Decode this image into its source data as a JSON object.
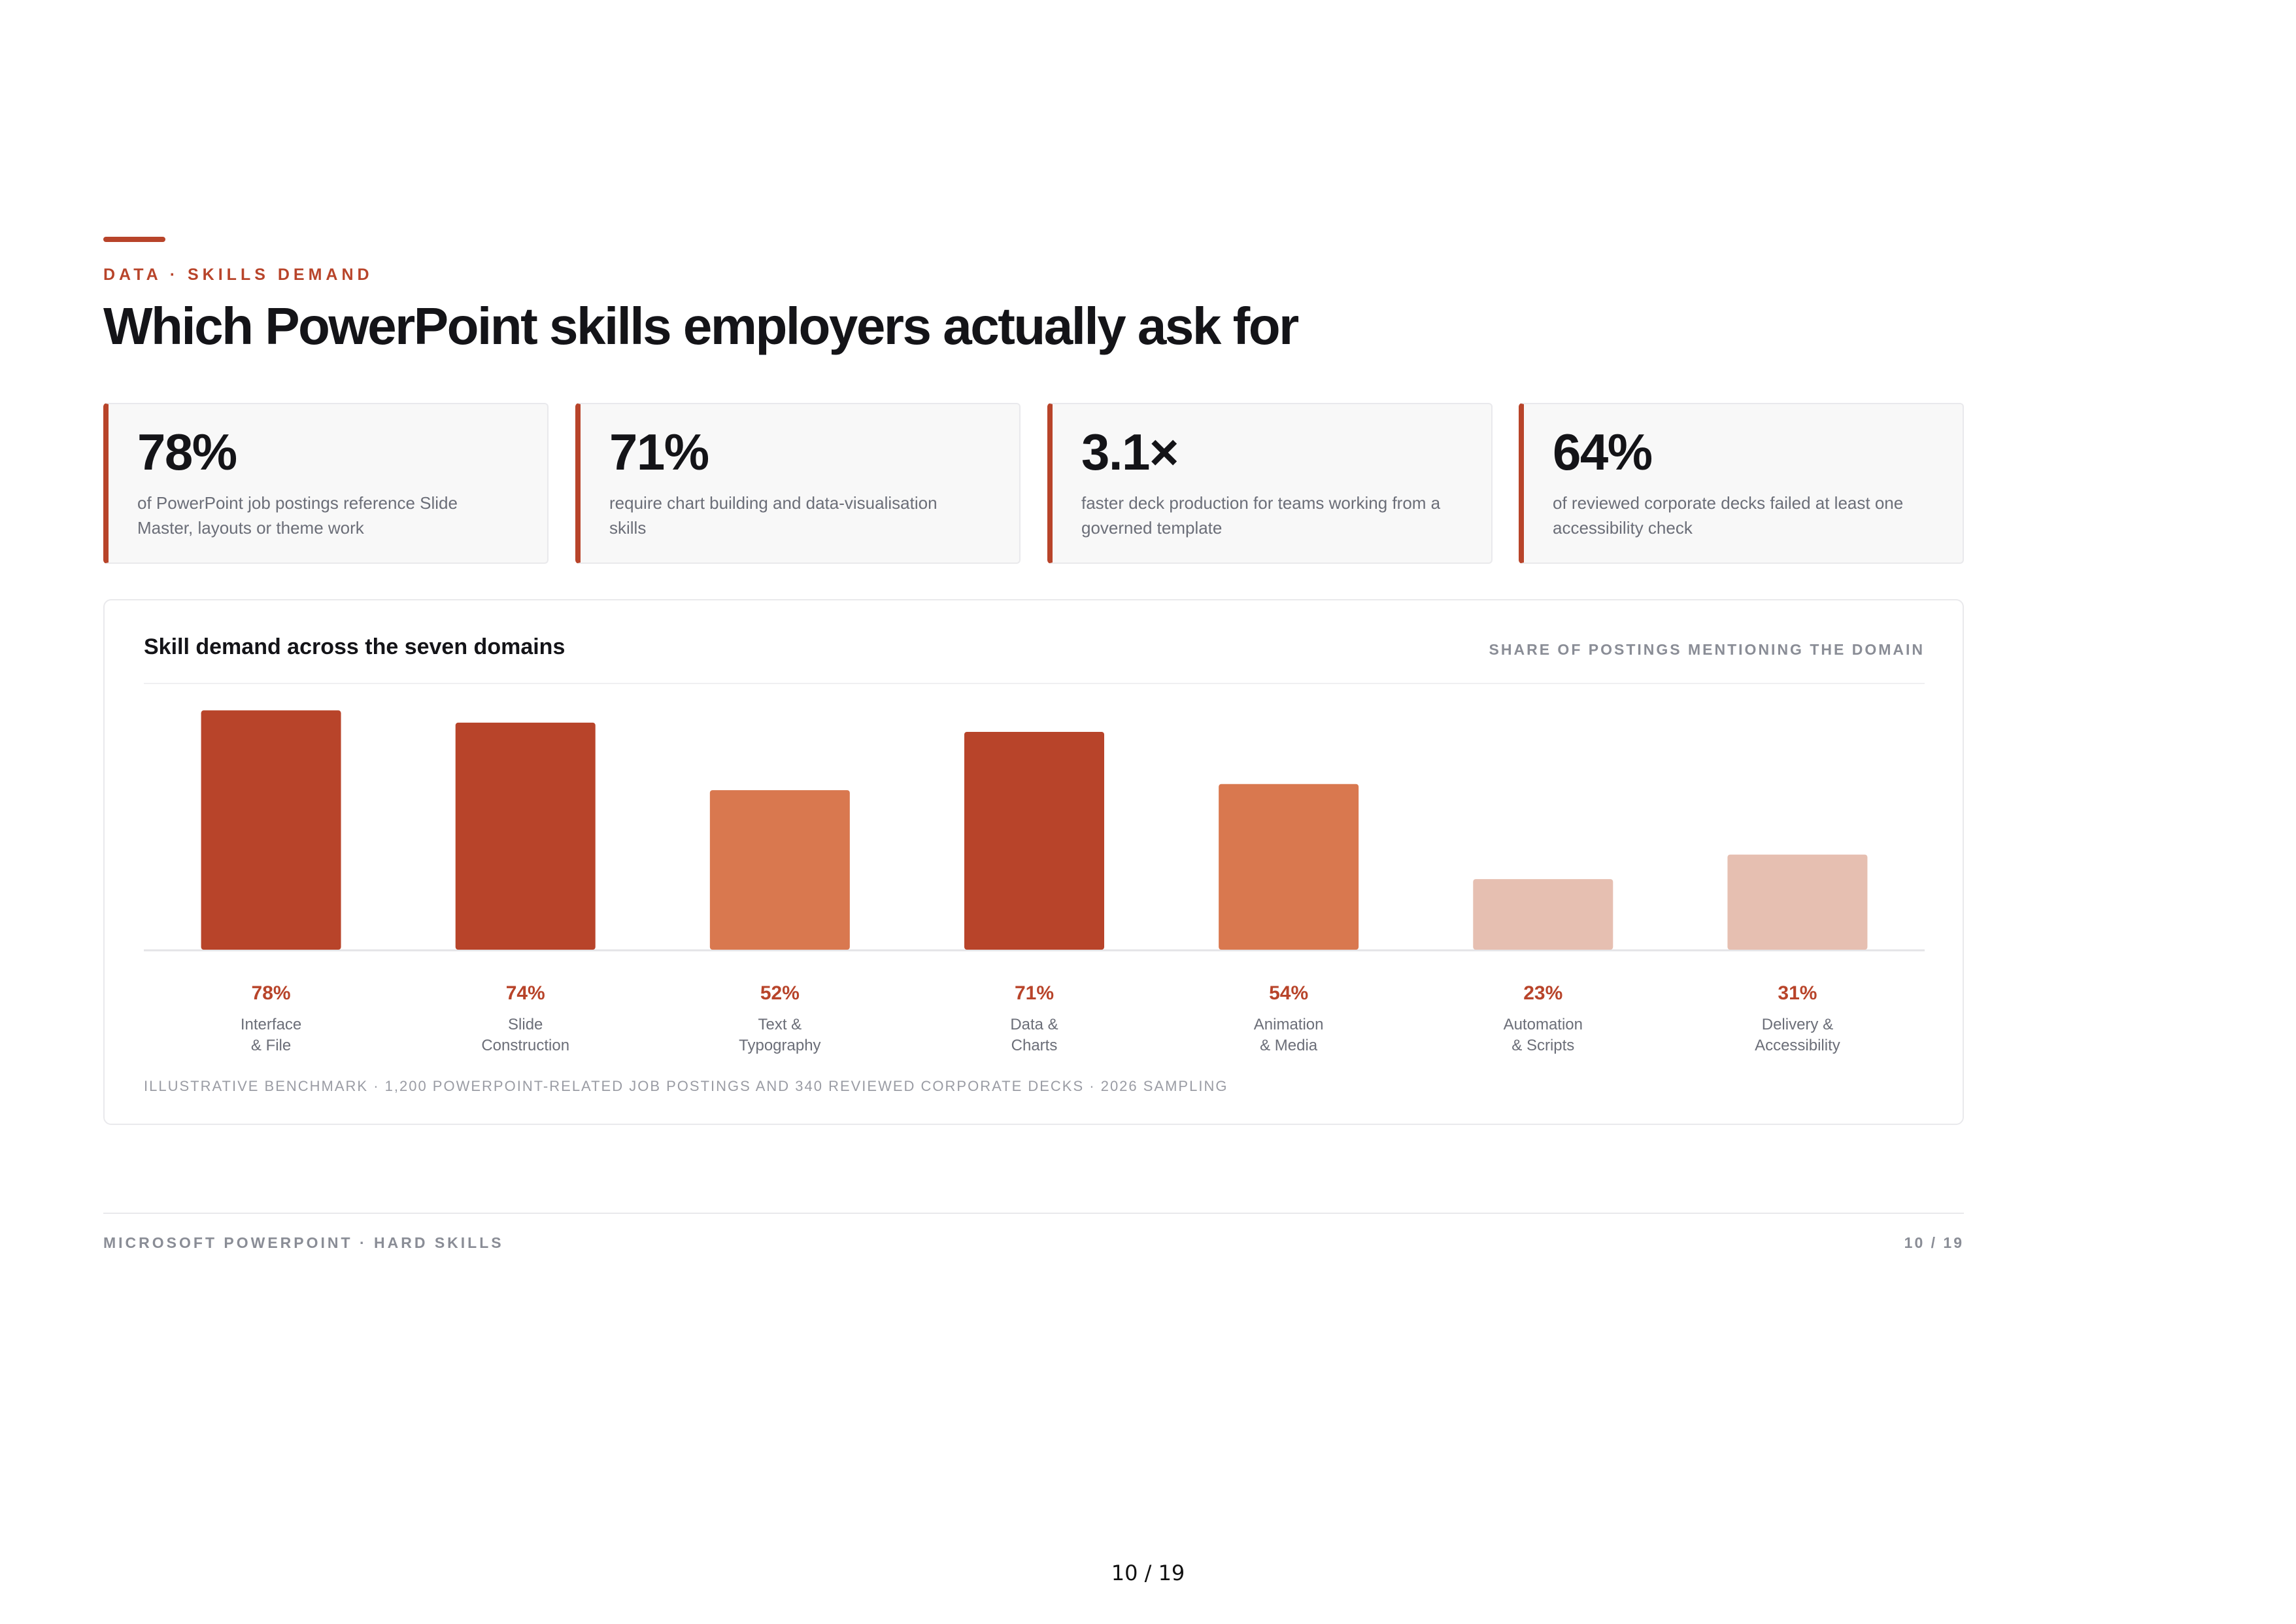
{
  "eyebrow": "DATA · SKILLS DEMAND",
  "title": "Which PowerPoint skills employers actually ask for",
  "stats": [
    {
      "value": "78%",
      "description": "of PowerPoint job postings reference Slide Master, layouts or theme work"
    },
    {
      "value": "71%",
      "description": "require chart building and data-visualisation skills"
    },
    {
      "value": "3.1×",
      "description": "faster deck production for teams working from a governed template"
    },
    {
      "value": "64%",
      "description": "of reviewed corporate decks failed at least one accessibility check"
    }
  ],
  "chart_panel": {
    "heading": "Skill demand across the seven domains",
    "meta": "SHARE OF POSTINGS MENTIONING THE DOMAIN",
    "footnote": "ILLUSTRATIVE BENCHMARK · 1,200 POWERPOINT-RELATED JOB POSTINGS AND 340 REVIEWED CORPORATE DECKS · 2026 SAMPLING"
  },
  "chart_data": {
    "type": "bar",
    "title": "Skill demand across the seven domains",
    "subtitle": "SHARE OF POSTINGS MENTIONING THE DOMAIN",
    "categories": [
      [
        "Interface",
        "& File"
      ],
      [
        "Slide",
        "Construction"
      ],
      [
        "Text &",
        "Typography"
      ],
      [
        "Data &",
        "Charts"
      ],
      [
        "Animation",
        "& Media"
      ],
      [
        "Automation",
        "& Scripts"
      ],
      [
        "Delivery &",
        "Accessibility"
      ]
    ],
    "values": [
      78,
      74,
      52,
      71,
      54,
      23,
      31
    ],
    "value_labels": [
      "78%",
      "74%",
      "52%",
      "71%",
      "54%",
      "23%",
      "31%"
    ],
    "ylim": [
      0,
      80
    ],
    "grid": false,
    "legend": "none",
    "colors": {
      "high": "#b8442a",
      "mid": "#d9784f",
      "low": "#e6bfb1",
      "label": "#b8442a"
    }
  },
  "footer": {
    "left": "MICROSOFT POWERPOINT · HARD SKILLS",
    "right": "10 / 19"
  },
  "page_number": "10 / 19"
}
